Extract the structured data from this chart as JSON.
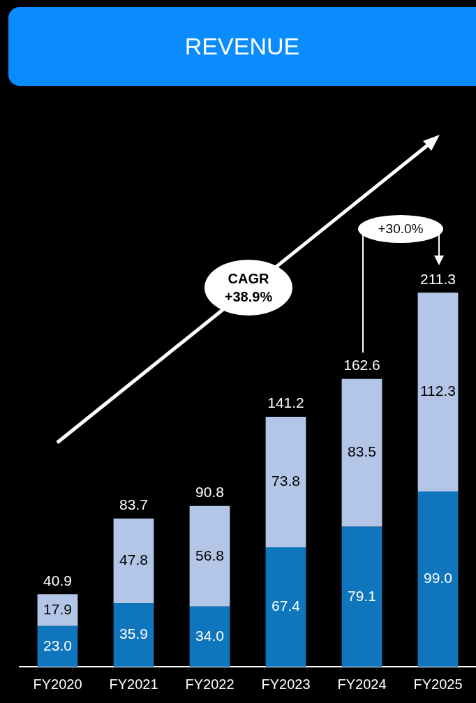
{
  "chart_data": {
    "type": "bar",
    "title": "REVENUE",
    "categories": [
      "FY2020",
      "FY2021",
      "FY2022",
      "FY2023",
      "FY2024",
      "FY2025"
    ],
    "stacked": true,
    "series": [
      {
        "color": "#0f75bc",
        "values": [
          23.0,
          35.9,
          34.0,
          67.4,
          79.1,
          99.0
        ],
        "value_labels": [
          "23.0",
          "35.9",
          "34.0",
          "67.4",
          "79.1",
          "99.0"
        ]
      },
      {
        "color": "#b4c6e7",
        "values": [
          17.9,
          47.8,
          56.8,
          73.8,
          83.5,
          112.3
        ],
        "value_labels": [
          "17.9",
          "47.8",
          "56.8",
          "73.8",
          "83.5",
          "112.3"
        ]
      }
    ],
    "totals": [
      "40.9",
      "83.7",
      "90.8",
      "141.2",
      "162.6",
      "211.3"
    ],
    "annotations": [
      "CAGR +38.9%",
      "+30.0%"
    ],
    "legend": false
  }
}
